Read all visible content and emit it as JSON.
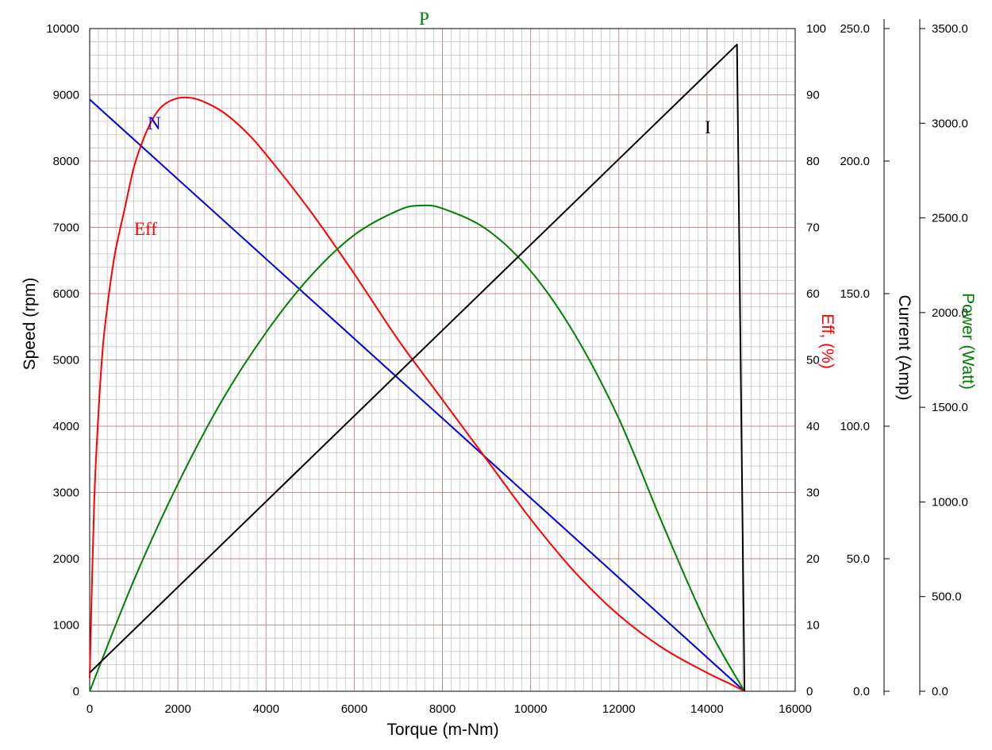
{
  "chart_data": {
    "type": "line",
    "xlabel": "Torque (m-Nm)",
    "xlim": [
      0,
      16000
    ],
    "x_ticks": [
      "0",
      "2000",
      "4000",
      "6000",
      "8000",
      "10000",
      "12000",
      "14000",
      "16000"
    ],
    "axes": {
      "speed": {
        "label": "Speed (rpm)",
        "color": "#000000",
        "lim": [
          0,
          10000
        ],
        "ticks": [
          "0",
          "1000",
          "2000",
          "3000",
          "4000",
          "5000",
          "6000",
          "7000",
          "8000",
          "9000",
          "10000"
        ]
      },
      "eff": {
        "label": "Eff, (%)",
        "color": "#ff0000",
        "lim": [
          0,
          100
        ],
        "ticks": [
          "0",
          "10",
          "20",
          "30",
          "40",
          "50",
          "60",
          "70",
          "80",
          "90",
          "100"
        ]
      },
      "current": {
        "label": "Current (Amp)",
        "color": "#000000",
        "lim": [
          0,
          250
        ],
        "ticks": [
          "0.0",
          "50.0",
          "100.0",
          "150.0",
          "200.0",
          "250.0"
        ]
      },
      "power": {
        "label": "Power (Watt)",
        "color": "#008000",
        "lim": [
          0,
          3500
        ],
        "ticks": [
          "0.0",
          "500.0",
          "1000.0",
          "1500.0",
          "2000.0",
          "2500.0",
          "3000.0",
          "3500.0"
        ]
      }
    },
    "grid": true,
    "series": [
      {
        "name": "N",
        "axis": "speed",
        "color": "#0000dd",
        "x": [
          0,
          14850
        ],
        "y": [
          8930,
          0
        ]
      },
      {
        "name": "Eff",
        "axis": "eff",
        "color": "#ff0000",
        "x": [
          0,
          100,
          200,
          300,
          400,
          500,
          600,
          800,
          1000,
          1200,
          1400,
          1600,
          1800,
          2000,
          2200,
          2500,
          3000,
          3500,
          4000,
          5000,
          6000,
          7000,
          8000,
          9000,
          10000,
          11000,
          12000,
          13000,
          14000,
          14500,
          14850
        ],
        "y": [
          2,
          28,
          42,
          52,
          58,
          63,
          67,
          73,
          79,
          83,
          86,
          88,
          89,
          89.5,
          89.6,
          89.2,
          87.5,
          84.7,
          81,
          72.5,
          63,
          53,
          44,
          35,
          26,
          18,
          11.5,
          6.5,
          2.8,
          1.2,
          0
        ]
      },
      {
        "name": "P",
        "axis": "power",
        "color": "#008000",
        "x": [
          0,
          1000,
          2000,
          3000,
          4000,
          5000,
          6000,
          7000,
          7500,
          8000,
          9000,
          10000,
          11000,
          12000,
          13000,
          14000,
          14850
        ],
        "y": [
          0,
          585,
          1095,
          1535,
          1895,
          2190,
          2410,
          2540,
          2565,
          2550,
          2440,
          2220,
          1885,
          1440,
          880,
          350,
          0
        ]
      },
      {
        "name": "I",
        "axis": "current",
        "color": "#000000",
        "x": [
          0,
          14680,
          14850
        ],
        "y": [
          7,
          244,
          0
        ]
      }
    ]
  }
}
